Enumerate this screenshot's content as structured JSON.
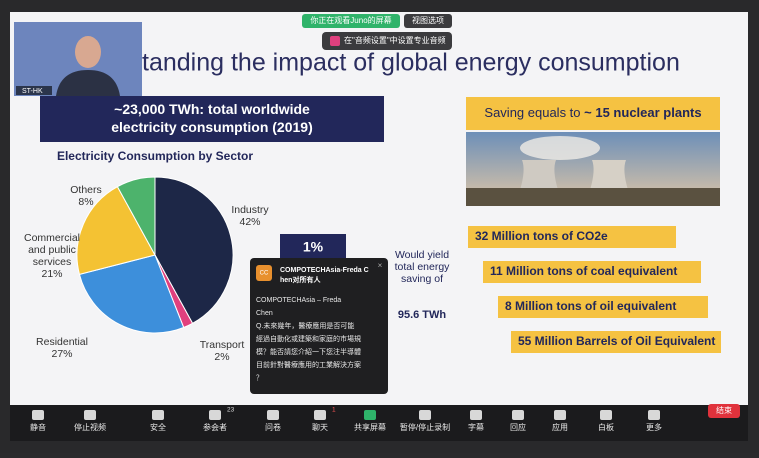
{
  "zoom": {
    "sharing_banner": "你正在观看Juno的屏幕",
    "view_options": "视图选项",
    "notice": "在\"音频设置\"中设置专业音频",
    "video_name": "ST-HK",
    "toolbar": [
      {
        "label": "静音"
      },
      {
        "label": "停止视频"
      },
      {
        "label": "安全"
      },
      {
        "label": "参会者",
        "badge": "23"
      },
      {
        "label": "问卷"
      },
      {
        "label": "聊天",
        "badge": "1"
      },
      {
        "label": "共享屏幕"
      },
      {
        "label": "暂停/停止录制"
      },
      {
        "label": "字幕"
      },
      {
        "label": "回应"
      },
      {
        "label": "应用"
      },
      {
        "label": "白板"
      },
      {
        "label": "更多"
      }
    ],
    "end_button": "结束",
    "chat": {
      "avatar": "CC",
      "from": "COMPOTECHAsia-Freda Chen对所有人",
      "sender": "COMPOTECHAsia – Freda Chen",
      "message": "Q.未來幾年，醫療應用是否可能經過自動化或建築和家庭的市場規模？能否請您介紹一下您注半導體目前針對醫療應用的工業解決方案？"
    }
  },
  "slide": {
    "title": "tanding the impact of global energy consumption",
    "headline": "~23,000 TWh: total worldwide electricity consumption (2019)",
    "saving_prefix": "Saving equals to",
    "saving_bold": "~ 15 nuclear plants",
    "percent": "1%",
    "yield": "Would yield total energy saving of",
    "yield_bold": "95.6 TWh",
    "equivalents": [
      "32 Million tons of CO2e",
      "11 Million tons of coal equivalent",
      "8 Million tons of oil equivalent",
      "55 Million Barrels of Oil Equivalent"
    ]
  },
  "chart_data": {
    "type": "pie",
    "title": "Electricity Consumption by Sector",
    "categories": [
      "Industry",
      "Transport",
      "Residential",
      "Commercial and public services",
      "Others"
    ],
    "values": [
      42,
      2,
      27,
      21,
      8
    ],
    "value_labels": [
      "42%",
      "2%",
      "27%",
      "21%",
      "8%"
    ],
    "colors": [
      "#1d2747",
      "#e0407e",
      "#3d8fdb",
      "#f4c233",
      "#4db36c"
    ]
  }
}
